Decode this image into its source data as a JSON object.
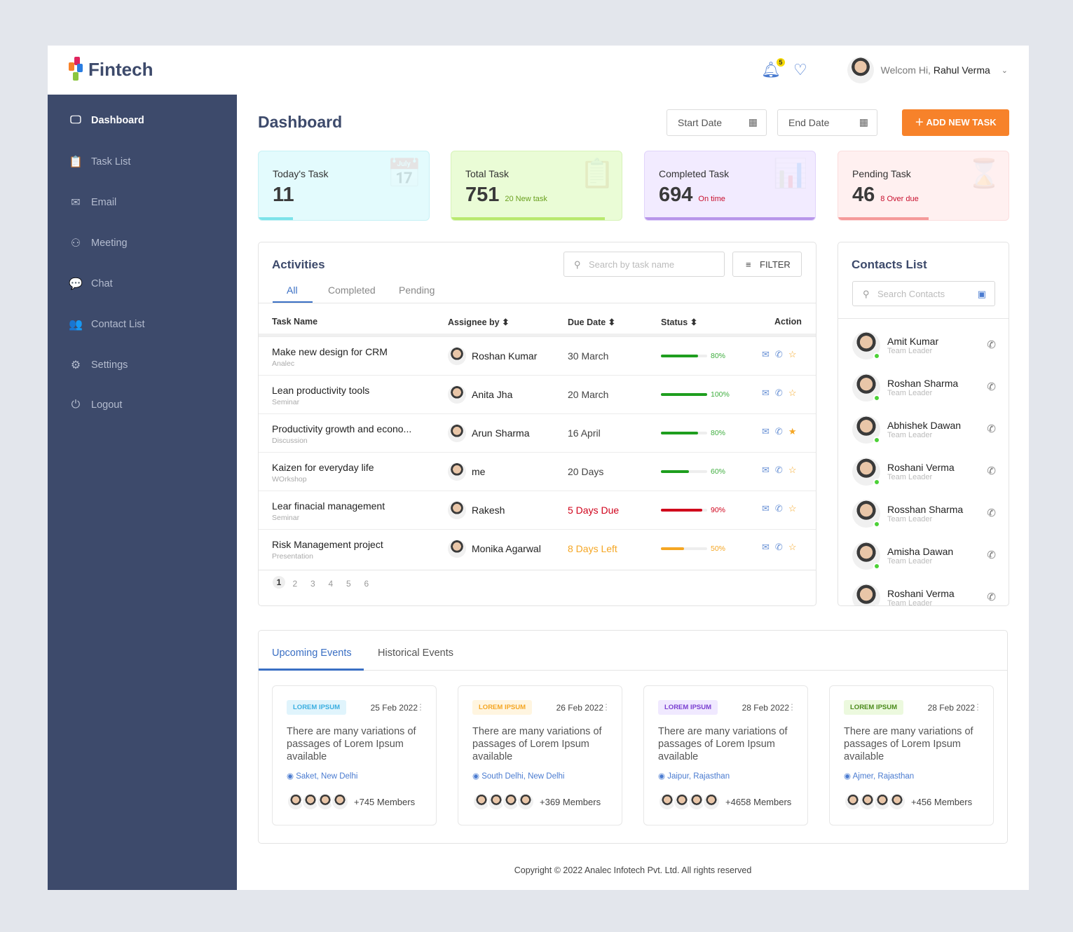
{
  "brand": {
    "name": "Fintech"
  },
  "header": {
    "notification_count": "5",
    "greeting": "Welcom Hi,",
    "user_name": "Rahul Verma"
  },
  "sidebar": {
    "items": [
      {
        "label": "Dashboard",
        "icon": "monitor-icon",
        "glyph": "🖵"
      },
      {
        "label": "Task List",
        "icon": "clipboard-icon",
        "glyph": "📋"
      },
      {
        "label": "Email",
        "icon": "mail-icon",
        "glyph": "✉"
      },
      {
        "label": "Meeting",
        "icon": "meeting-icon",
        "glyph": "⚇"
      },
      {
        "label": "Chat",
        "icon": "chat-icon",
        "glyph": "💬"
      },
      {
        "label": "Contact List",
        "icon": "users-icon",
        "glyph": "👥"
      },
      {
        "label": "Settings",
        "icon": "gear-icon",
        "glyph": "⚙"
      },
      {
        "label": "Logout",
        "icon": "power-icon",
        "glyph": "⏻"
      }
    ]
  },
  "page": {
    "title": "Dashboard",
    "start_date": "Start Date",
    "end_date": "End Date",
    "add_task": "ADD NEW TASK"
  },
  "stats": [
    {
      "label": "Today's Task",
      "value": "11",
      "sub": "",
      "progress": 20,
      "bg": "#e3fbfd",
      "border": "#c7f1f5",
      "bar": "#7de3ea",
      "subcolor": "#7a9b1a",
      "icon": "calendar-check-icon"
    },
    {
      "label": "Total Task",
      "value": "751",
      "sub": "20 New task",
      "progress": 90,
      "bg": "#eafcd6",
      "border": "#d7f3b9",
      "bar": "#b9e96f",
      "subcolor": "#6aa01f",
      "icon": "clipboard-check-icon"
    },
    {
      "label": "Completed Task",
      "value": "694",
      "sub": "On time",
      "progress": 100,
      "bg": "#f2ebff",
      "border": "#e1d4fb",
      "bar": "#b896ea",
      "subcolor": "#c8102e",
      "icon": "presentation-icon"
    },
    {
      "label": "Pending Task",
      "value": "46",
      "sub": "8 Over due",
      "progress": 53,
      "bg": "#fff0f0",
      "border": "#fbdede",
      "bar": "#f59a9a",
      "subcolor": "#c8102e",
      "icon": "hourglass-icon"
    }
  ],
  "activities": {
    "title": "Activities",
    "tabs": [
      "All",
      "Completed",
      "Pending"
    ],
    "search_placeholder": "Search by task name",
    "filter": "FILTER",
    "columns": [
      "Task Name",
      "Assignee by",
      "Due Date",
      "Status",
      "Action"
    ],
    "rows": [
      {
        "task": "Make new design for CRM",
        "type": "Analec",
        "assignee": "Roshan Kumar",
        "due": "30 March",
        "due_color": "#444",
        "progress": 80,
        "bar": "#1e9e1e",
        "pct": "80%",
        "pct_color": "#3fae3f",
        "starred": false
      },
      {
        "task": "Lean productivity tools",
        "type": "Seminar",
        "assignee": "Anita Jha",
        "due": "20 March",
        "due_color": "#444",
        "progress": 100,
        "bar": "#1e9e1e",
        "pct": "100%",
        "pct_color": "#3fae3f",
        "starred": false
      },
      {
        "task": "Productivity growth and econo...",
        "type": "Discussion",
        "assignee": "Arun Sharma",
        "due": "16 April",
        "due_color": "#444",
        "progress": 80,
        "bar": "#1e9e1e",
        "pct": "80%",
        "pct_color": "#3fae3f",
        "starred": true
      },
      {
        "task": "Kaizen for everyday life",
        "type": "WOrkshop",
        "assignee": "me",
        "due": "20 Days",
        "due_color": "#444",
        "progress": 60,
        "bar": "#1e9e1e",
        "pct": "60%",
        "pct_color": "#3fae3f",
        "starred": false
      },
      {
        "task": "Lear finacial management",
        "type": "Seminar",
        "assignee": "Rakesh",
        "due": "5 Days Due",
        "due_color": "#d0021b",
        "progress": 90,
        "bar": "#d0021b",
        "pct": "90%",
        "pct_color": "#d0021b",
        "starred": false
      },
      {
        "task": "Risk Management project",
        "type": "Presentation",
        "assignee": "Monika Agarwal",
        "due": "8 Days Left",
        "due_color": "#f5a623",
        "progress": 50,
        "bar": "#f5a623",
        "pct": "50%",
        "pct_color": "#f5a623",
        "starred": false
      }
    ],
    "pages": [
      "1",
      "2",
      "3",
      "4",
      "5",
      "6"
    ]
  },
  "contacts": {
    "title": "Contacts List",
    "search_placeholder": "Search Contacts",
    "items": [
      {
        "name": "Amit Kumar",
        "role": "Team Leader"
      },
      {
        "name": "Roshan Sharma",
        "role": "Team Leader"
      },
      {
        "name": "Abhishek Dawan",
        "role": "Team Leader"
      },
      {
        "name": "Roshani Verma",
        "role": "Team Leader"
      },
      {
        "name": "Rosshan Sharma",
        "role": "Team Leader"
      },
      {
        "name": "Amisha Dawan",
        "role": "Team Leader"
      },
      {
        "name": "Roshani Verma",
        "role": "Team Leader"
      }
    ]
  },
  "events": {
    "tabs": [
      "Upcoming Events",
      "Historical Events"
    ],
    "items": [
      {
        "tag": "LOREM IPSUM",
        "tag_bg": "#e0f4fc",
        "tag_color": "#3aaee0",
        "date": "25 Feb 2022",
        "text": "There are many variations of passages of Lorem Ipsum available",
        "location": "Saket, New Delhi",
        "members": "+745 Members"
      },
      {
        "tag": "LOREM IPSUM",
        "tag_bg": "#fff5e0",
        "tag_color": "#f5a623",
        "date": "26 Feb 2022",
        "text": "There are many variations of passages of Lorem Ipsum available",
        "location": "South Delhi, New Delhi",
        "members": "+369 Members"
      },
      {
        "tag": "LOREM IPSUM",
        "tag_bg": "#f0e9ff",
        "tag_color": "#7a3fd0",
        "date": "28 Feb 2022",
        "text": "There are many variations of passages of Lorem Ipsum available",
        "location": "Jaipur, Rajasthan",
        "members": "+4658 Members"
      },
      {
        "tag": "LOREM IPSUM",
        "tag_bg": "#ecf9de",
        "tag_color": "#4a8a1a",
        "date": "28 Feb 2022",
        "text": "There are many variations of passages of Lorem Ipsum available",
        "location": "Ajmer, Rajasthan",
        "members": "+456 Members"
      }
    ]
  },
  "footer": "Copyright © 2022 Analec Infotech Pvt. Ltd. All rights reserved"
}
